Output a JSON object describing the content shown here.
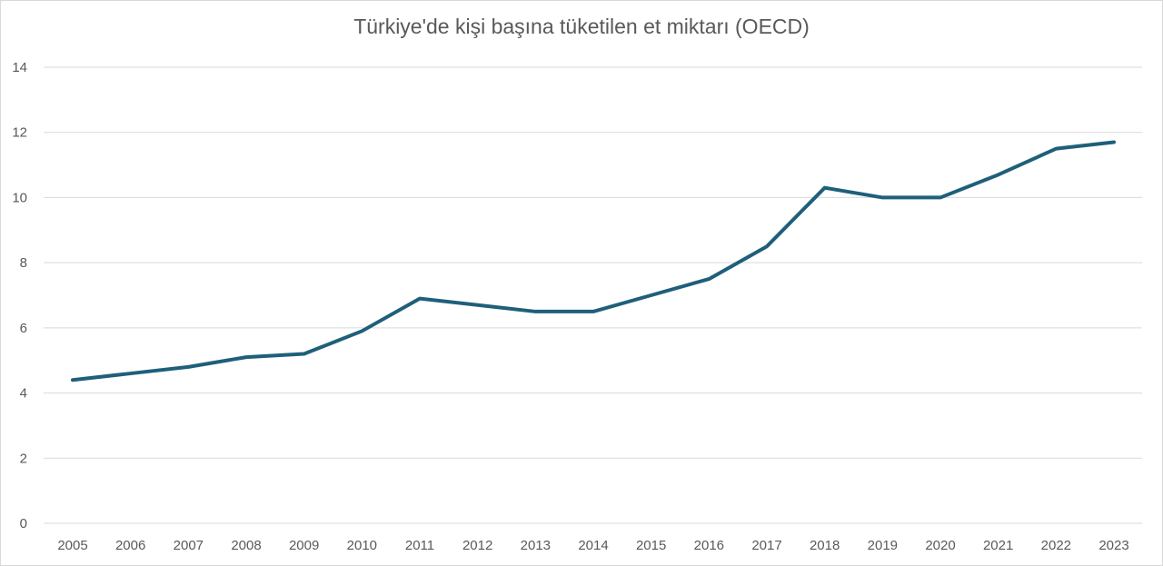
{
  "chart_data": {
    "type": "line",
    "title": "Türkiye'de kişi başına tüketilen et miktarı (OECD)",
    "xlabel": "",
    "ylabel": "",
    "ylim": [
      0,
      14
    ],
    "yticks": [
      0,
      2,
      4,
      6,
      8,
      10,
      12,
      14
    ],
    "grid": true,
    "categories": [
      "2005",
      "2006",
      "2007",
      "2008",
      "2009",
      "2010",
      "2011",
      "2012",
      "2013",
      "2014",
      "2015",
      "2016",
      "2017",
      "2018",
      "2019",
      "2020",
      "2021",
      "2022",
      "2023"
    ],
    "series": [
      {
        "values": [
          4.4,
          4.6,
          4.8,
          5.1,
          5.2,
          5.9,
          6.9,
          6.7,
          6.5,
          6.5,
          7.0,
          7.5,
          8.5,
          10.3,
          10.0,
          10.0,
          10.7,
          11.5,
          11.7
        ],
        "color": "#1f5f7a"
      }
    ],
    "gridline_color": "#d9d9d9",
    "text_color": "#595959"
  }
}
